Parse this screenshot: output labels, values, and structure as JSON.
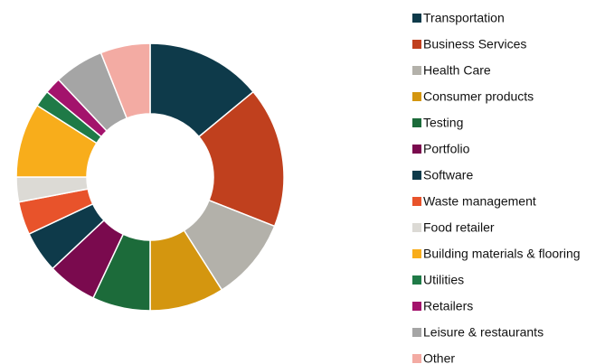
{
  "chart_data": {
    "type": "donut",
    "categories": [
      "Transportation",
      "Business Services",
      "Health Care",
      "Consumer products",
      "Testing",
      "Portfolio",
      "Software",
      "Waste management",
      "Food retailer",
      "Building materials & flooring",
      "Utilities",
      "Retailers",
      "Leisure & restaurants",
      "Other"
    ],
    "values": [
      14,
      17,
      10,
      9,
      7,
      6,
      5,
      4,
      3,
      9,
      2,
      2,
      6,
      6
    ],
    "colors": [
      "#0e3a4a",
      "#c0401e",
      "#b3b1aa",
      "#d4960f",
      "#1c6b3a",
      "#7a0a4e",
      "#0e3a4a",
      "#e8532b",
      "#dcdad5",
      "#f8ad1b",
      "#1f7a47",
      "#a3136c",
      "#a5a5a5",
      "#f3aba3"
    ],
    "legend": "right"
  }
}
